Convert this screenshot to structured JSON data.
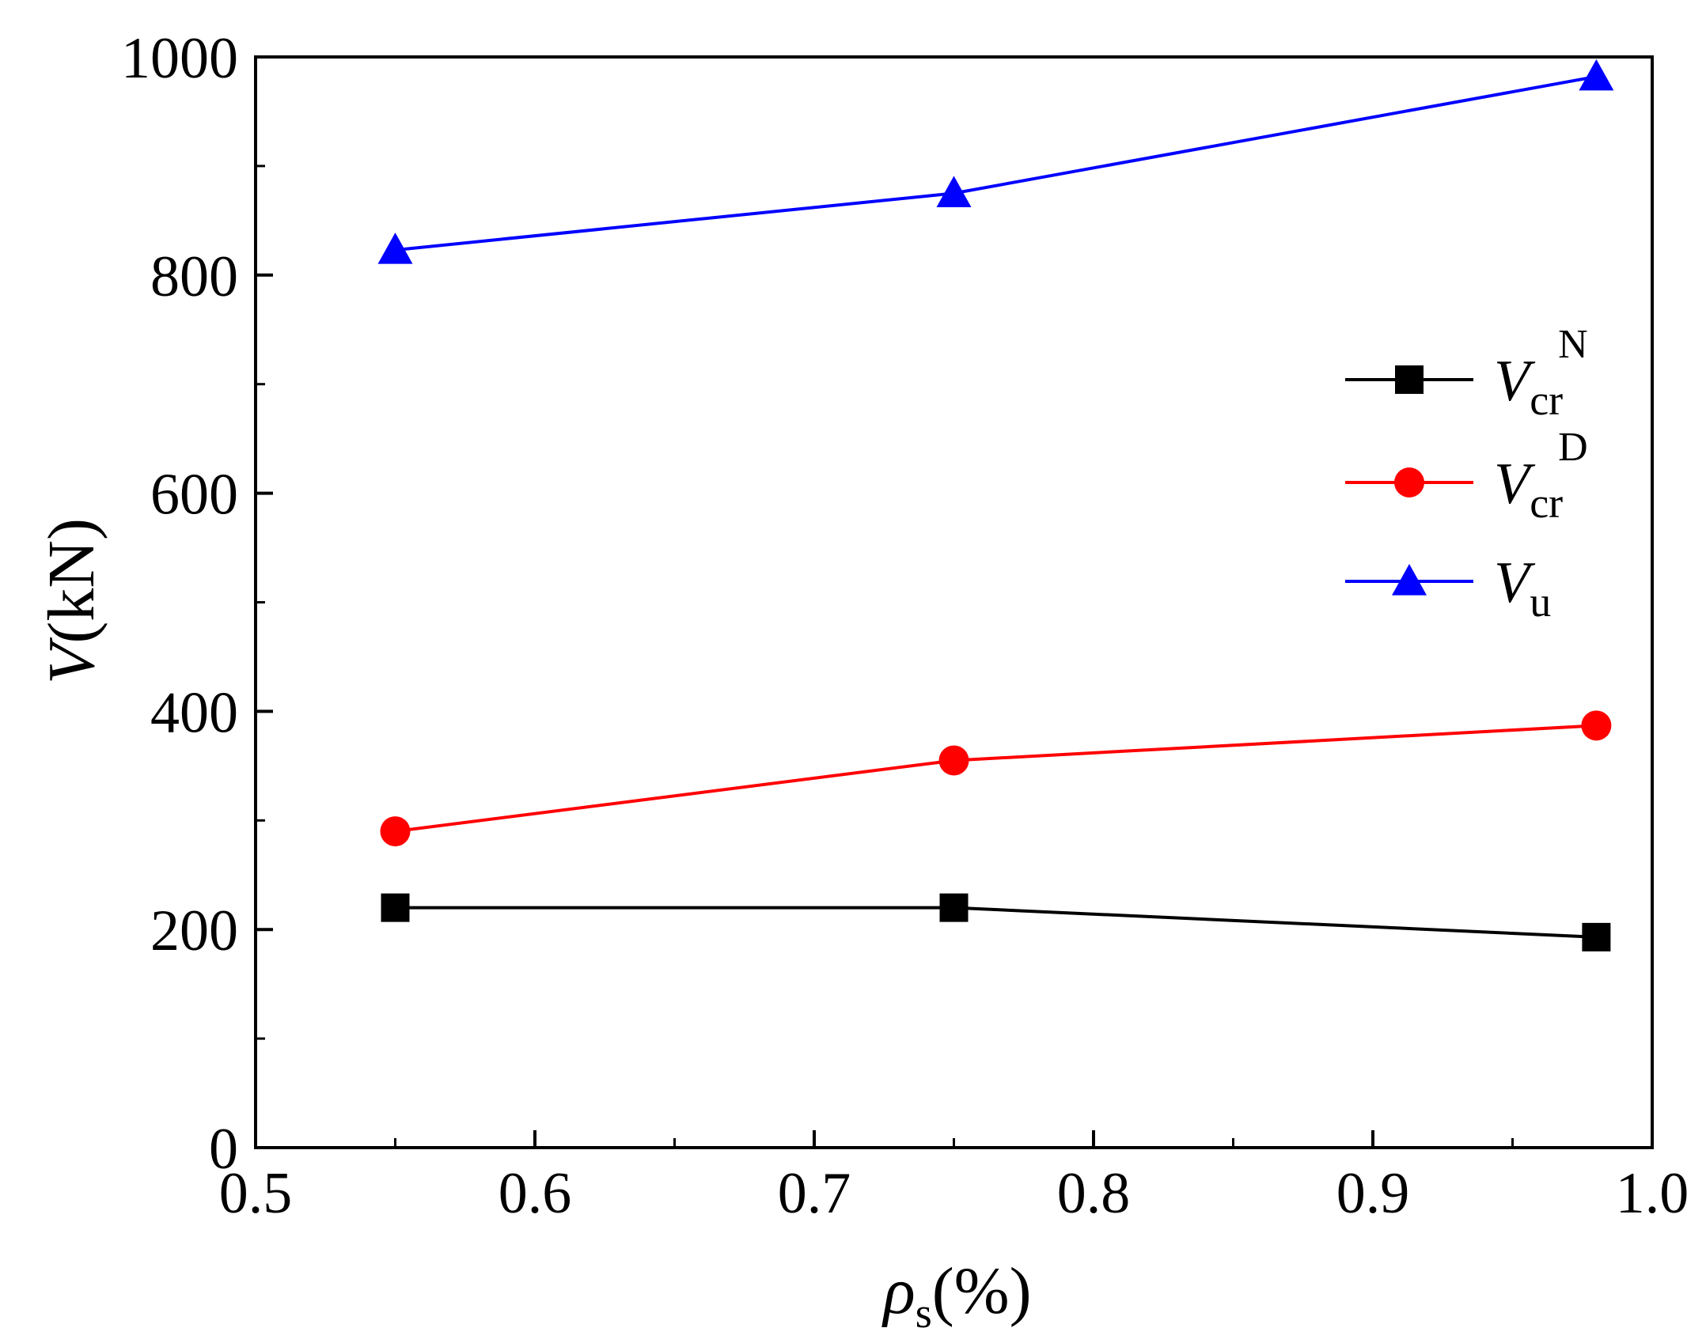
{
  "chart_data": {
    "type": "line",
    "title": "",
    "xlabel": {
      "main": "ρ",
      "sub": "s",
      "rest": "(%)"
    },
    "ylabel": {
      "main": "V",
      "rest": "(kN)"
    },
    "xlim": [
      0.5,
      1.0
    ],
    "ylim": [
      0,
      1000
    ],
    "x_ticks": [
      0.5,
      0.6,
      0.7,
      0.8,
      0.9,
      1.0
    ],
    "x_tick_labels": [
      "0.5",
      "0.6",
      "0.7",
      "0.8",
      "0.9",
      "1.0"
    ],
    "x_minor_ticks": [
      0.55,
      0.65,
      0.75,
      0.85,
      0.95
    ],
    "y_ticks": [
      0,
      200,
      400,
      600,
      800,
      1000
    ],
    "y_tick_labels": [
      "0",
      "200",
      "400",
      "600",
      "800",
      "1000"
    ],
    "y_minor_ticks": [
      100,
      300,
      500,
      700,
      900
    ],
    "grid": false,
    "legend_position": "right",
    "series": [
      {
        "name": "Vcr N",
        "label": {
          "main": "V",
          "sub": "cr",
          "sup": "N"
        },
        "color": "#000000",
        "marker": "square",
        "x": [
          0.55,
          0.75,
          0.98
        ],
        "values": [
          220,
          220,
          193
        ]
      },
      {
        "name": "Vcr D",
        "label": {
          "main": "V",
          "sub": "cr",
          "sup": "D"
        },
        "color": "#ff0000",
        "marker": "circle",
        "x": [
          0.55,
          0.75,
          0.98
        ],
        "values": [
          290,
          355,
          387
        ]
      },
      {
        "name": "Vu",
        "label": {
          "main": "V",
          "sub": "u",
          "sup": ""
        },
        "color": "#0000ff",
        "marker": "triangle",
        "x": [
          0.55,
          0.75,
          0.98
        ],
        "values": [
          823,
          875,
          982
        ]
      }
    ]
  }
}
